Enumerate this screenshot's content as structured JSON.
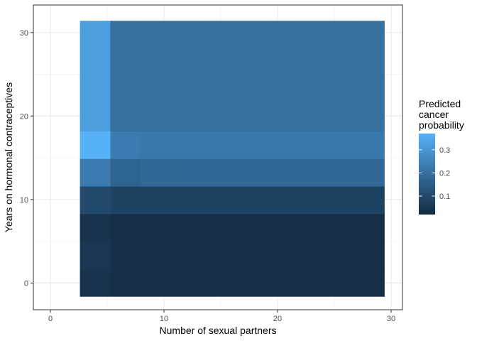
{
  "chart_data": {
    "type": "heatmap",
    "title": "",
    "xlabel": "Number of sexual partners",
    "ylabel": "Years on hormonal contraceptives",
    "xlim": [
      -1.5,
      31
    ],
    "ylim": [
      -3.2,
      33.3
    ],
    "x_ticks": [
      0,
      10,
      20,
      30
    ],
    "y_ticks": [
      0,
      10,
      20,
      30
    ],
    "grid": true,
    "x_edges": [
      2.6,
      5.28,
      7.96,
      10.64,
      13.32,
      16.0,
      18.68,
      21.36,
      24.04,
      26.72,
      29.4
    ],
    "y_edges": [
      -1.6,
      1.7,
      5.0,
      8.3,
      11.6,
      14.9,
      18.2,
      21.5,
      24.8,
      28.1,
      31.4
    ],
    "values": [
      [
        0.04,
        0.03,
        0.03,
        0.03,
        0.03,
        0.03,
        0.03,
        0.03,
        0.03,
        0.03
      ],
      [
        0.05,
        0.03,
        0.03,
        0.03,
        0.03,
        0.03,
        0.03,
        0.03,
        0.03,
        0.03
      ],
      [
        0.04,
        0.03,
        0.03,
        0.03,
        0.03,
        0.03,
        0.03,
        0.03,
        0.03,
        0.03
      ],
      [
        0.1,
        0.08,
        0.08,
        0.08,
        0.08,
        0.08,
        0.08,
        0.08,
        0.08,
        0.08
      ],
      [
        0.23,
        0.17,
        0.18,
        0.18,
        0.18,
        0.18,
        0.18,
        0.18,
        0.18,
        0.18
      ],
      [
        0.37,
        0.23,
        0.22,
        0.22,
        0.22,
        0.22,
        0.22,
        0.22,
        0.22,
        0.22
      ],
      [
        0.32,
        0.2,
        0.2,
        0.2,
        0.2,
        0.2,
        0.2,
        0.2,
        0.2,
        0.2
      ],
      [
        0.32,
        0.2,
        0.2,
        0.2,
        0.2,
        0.2,
        0.2,
        0.2,
        0.2,
        0.2
      ],
      [
        0.32,
        0.2,
        0.2,
        0.2,
        0.2,
        0.2,
        0.2,
        0.2,
        0.2,
        0.2
      ],
      [
        0.32,
        0.2,
        0.2,
        0.2,
        0.2,
        0.2,
        0.2,
        0.2,
        0.2,
        0.2
      ]
    ],
    "colorbar": {
      "title_lines": [
        "Predicted",
        "cancer",
        "probability"
      ],
      "min": 0.02,
      "max": 0.37,
      "ticks": [
        0.1,
        0.2,
        0.3
      ],
      "tick_labels": [
        "0.1",
        "0.2",
        "0.3"
      ],
      "low_color": "#132B43",
      "high_color": "#56B1F7"
    }
  }
}
